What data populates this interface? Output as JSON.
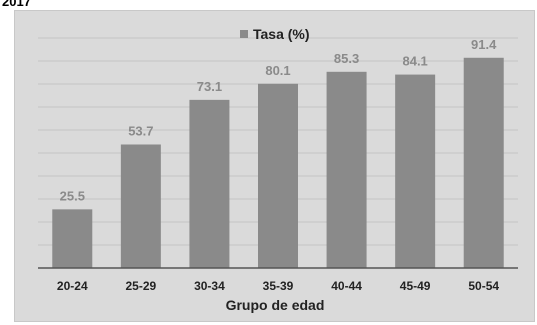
{
  "header_text": "2017",
  "colors": {
    "panel_background": "#dadada",
    "bar": "#8a8a8a",
    "label": "#8a8a8a",
    "axis_text": "#222222",
    "gridline": "#c4c4c4",
    "baseline": "#555555"
  },
  "chart_data": {
    "type": "bar",
    "categories": [
      "20-24",
      "25-29",
      "30-34",
      "35-39",
      "40-44",
      "45-49",
      "50-54"
    ],
    "series": [
      {
        "name": "Tasa (%)",
        "values": [
          25.5,
          53.7,
          73.1,
          80.1,
          85.3,
          84.1,
          91.4
        ]
      }
    ],
    "data_labels": [
      "25.5",
      "53.7",
      "73.1",
      "80.1",
      "85.3",
      "84.1",
      "91.4"
    ],
    "title": "",
    "xlabel": "Grupo de edad",
    "ylabel": "",
    "ylim": [
      0,
      100
    ],
    "y_axis_labels_shown": false,
    "grid": true,
    "legend_position": "top-center"
  }
}
